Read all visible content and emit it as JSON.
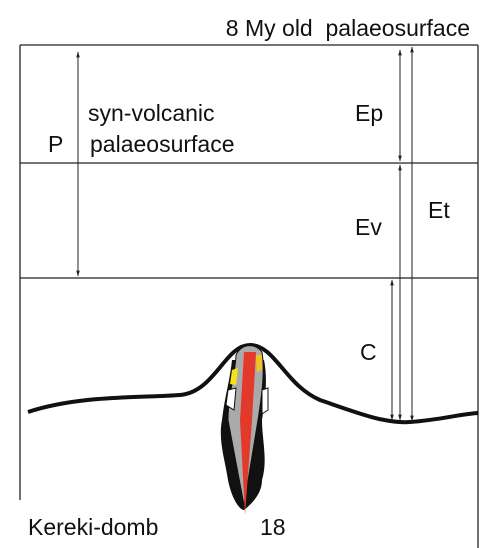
{
  "header": {
    "title": "8 My old  palaeosurface"
  },
  "labels": {
    "syn_volcanic": "syn-volcanic",
    "palaeosurface": "palaeosurface",
    "p": "P",
    "ep": "Ep",
    "ev": "Ev",
    "et": "Et",
    "c": "C"
  },
  "footer": {
    "name": "Kereki-domb",
    "number": "18"
  }
}
